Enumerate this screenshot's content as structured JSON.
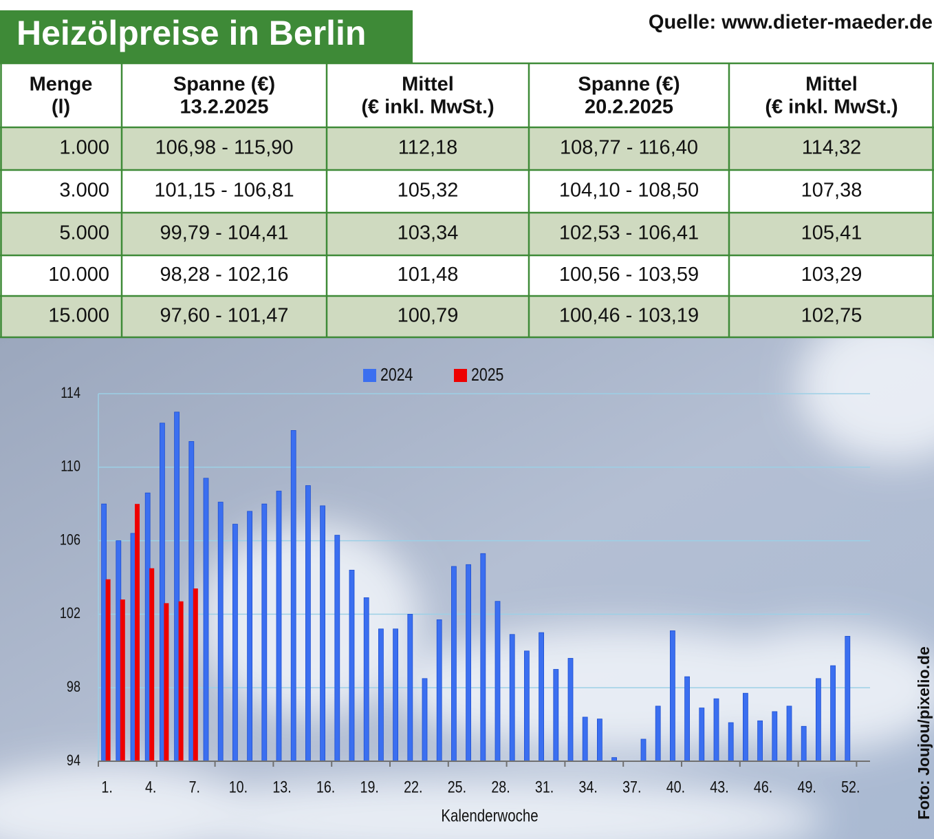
{
  "title": "Heizölpreise in Berlin",
  "source": "Quelle: www.dieter-maeder.de",
  "photo_credit": "Foto: Joujou/pixelio.de",
  "table": {
    "headers": [
      [
        "Menge",
        "(l)"
      ],
      [
        "Spanne (€)",
        "13.2.2025"
      ],
      [
        "Mittel",
        "(€ inkl. MwSt.)"
      ],
      [
        "Spanne (€)",
        "20.2.2025"
      ],
      [
        "Mittel",
        "(€ inkl. MwSt.)"
      ]
    ],
    "rows": [
      [
        "1.000",
        "106,98 - 115,90",
        "112,18",
        "108,77 - 116,40",
        "114,32"
      ],
      [
        "3.000",
        "101,15 - 106,81",
        "105,32",
        "104,10 - 108,50",
        "107,38"
      ],
      [
        "5.000",
        "99,79 - 104,41",
        "103,34",
        "102,53 - 106,41",
        "105,41"
      ],
      [
        "10.000",
        "98,28 - 102,16",
        "101,48",
        "100,56 - 103,59",
        "103,29"
      ],
      [
        "15.000",
        "97,60 - 101,47",
        "100,79",
        "100,46 - 103,19",
        "102,75"
      ]
    ]
  },
  "chart_data": {
    "type": "bar",
    "x_label": "Kalenderwoche",
    "categories": [
      "1.",
      null,
      null,
      "4.",
      null,
      null,
      "7.",
      null,
      null,
      "10.",
      null,
      null,
      "13.",
      null,
      null,
      "16.",
      null,
      null,
      "19.",
      null,
      null,
      "22.",
      null,
      null,
      "25.",
      null,
      null,
      "28.",
      null,
      null,
      "31.",
      null,
      null,
      "34.",
      null,
      null,
      "37.",
      null,
      null,
      "40.",
      null,
      null,
      "43.",
      null,
      null,
      "46.",
      null,
      null,
      "49.",
      null,
      null,
      "52."
    ],
    "series": [
      {
        "name": "2024",
        "color": "#3b6ff0",
        "values": [
          108.0,
          106.0,
          106.4,
          108.6,
          112.4,
          113.0,
          111.4,
          109.4,
          108.1,
          106.9,
          107.6,
          108.0,
          108.7,
          112.0,
          109.0,
          107.9,
          106.3,
          104.4,
          102.9,
          101.2,
          101.2,
          102.0,
          98.5,
          101.7,
          104.6,
          104.7,
          105.3,
          102.7,
          100.9,
          100.0,
          101.0,
          99.0,
          99.6,
          96.4,
          96.3,
          94.2,
          94.0,
          95.2,
          97.0,
          101.1,
          98.6,
          96.9,
          97.4,
          96.1,
          97.7,
          96.2,
          96.7,
          97.0,
          95.9,
          98.5,
          99.2,
          100.8
        ]
      },
      {
        "name": "2025",
        "color": "#ee0000",
        "values": [
          103.9,
          102.8,
          108.0,
          104.5,
          102.6,
          102.7,
          103.4,
          null,
          null,
          null,
          null,
          null,
          null,
          null,
          null,
          null,
          null,
          null,
          null,
          null,
          null,
          null,
          null,
          null,
          null,
          null,
          null,
          null,
          null,
          null,
          null,
          null,
          null,
          null,
          null,
          null,
          null,
          null,
          null,
          null,
          null,
          null,
          null,
          null,
          null,
          null,
          null,
          null,
          null,
          null,
          null,
          null
        ]
      }
    ],
    "ylim": [
      94,
      114
    ],
    "yticks": [
      94,
      98,
      102,
      106,
      110,
      114
    ],
    "grid": true,
    "legend": "top"
  }
}
